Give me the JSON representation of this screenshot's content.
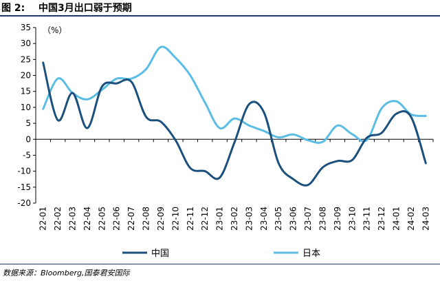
{
  "figure": {
    "number": "图 2:",
    "title": "中国3月出口弱于预期",
    "source": "数据来源：Bloomberg,国泰君安国际"
  },
  "colors": {
    "china": "#1b4f7c",
    "japan": "#5bbde4",
    "header_rule": "#1f3864"
  },
  "chart_data": {
    "type": "line",
    "unit_label": "（%）",
    "xlabel": "",
    "ylabel": "",
    "ylim": [
      -20,
      35
    ],
    "yticks": [
      35,
      30,
      25,
      20,
      15,
      10,
      5,
      0,
      -5,
      -10,
      -15,
      -20
    ],
    "grid": false,
    "legend_position": "bottom",
    "x": [
      "22-01",
      "22-02",
      "22-03",
      "22-04",
      "22-05",
      "22-06",
      "22-07",
      "22-08",
      "22-09",
      "22-10",
      "22-11",
      "22-12",
      "23-01",
      "23-02",
      "23-03",
      "23-04",
      "23-05",
      "23-06",
      "23-07",
      "23-08",
      "23-09",
      "23-10",
      "23-11",
      "23-12",
      "24-01",
      "24-02",
      "24-03"
    ],
    "series": [
      {
        "name": "中国",
        "values": [
          24.0,
          6.0,
          14.5,
          3.5,
          16.5,
          17.5,
          18.0,
          7.0,
          5.5,
          -0.3,
          -9.0,
          -10.0,
          -12.0,
          -1.0,
          11.0,
          8.5,
          -7.5,
          -12.5,
          -14.3,
          -8.8,
          -6.8,
          -6.5,
          0.5,
          2.0,
          8.0,
          7.0,
          -7.5
        ]
      },
      {
        "name": "日本",
        "values": [
          9.5,
          19.0,
          14.5,
          12.5,
          15.5,
          19.0,
          19.0,
          22.0,
          28.9,
          25.5,
          20.0,
          11.5,
          3.5,
          6.5,
          4.3,
          2.6,
          0.6,
          1.5,
          -0.3,
          -0.8,
          4.3,
          1.6,
          -0.2,
          9.7,
          11.9,
          7.8,
          7.3
        ]
      }
    ]
  }
}
